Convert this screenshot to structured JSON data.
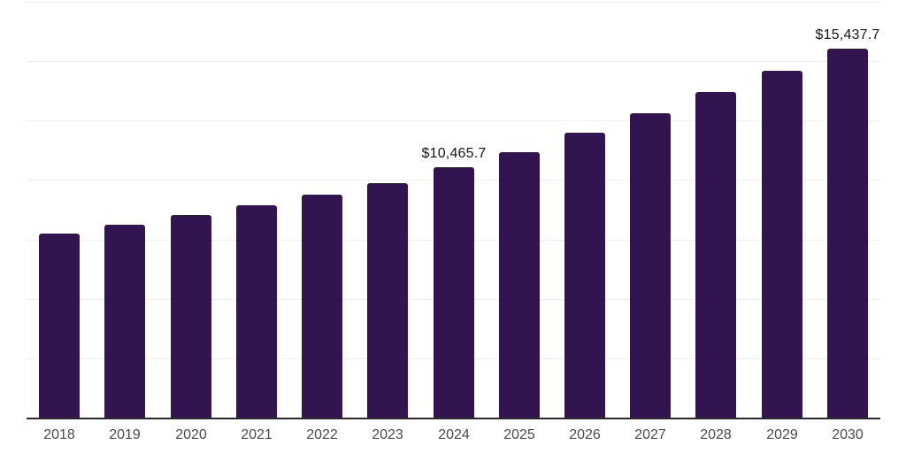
{
  "chart_data": {
    "type": "bar",
    "title": "",
    "xlabel": "",
    "ylabel": "",
    "categories": [
      "2018",
      "2019",
      "2020",
      "2021",
      "2022",
      "2023",
      "2024",
      "2025",
      "2026",
      "2027",
      "2028",
      "2029",
      "2030"
    ],
    "values": [
      7700,
      8070,
      8480,
      8890,
      9330,
      9820,
      10465.7,
      11120,
      11930,
      12740,
      13630,
      14520,
      15437.7
    ],
    "value_labels": [
      "",
      "",
      "",
      "",
      "",
      "",
      "$10,465.7",
      "",
      "",
      "",
      "",
      "",
      "$15,437.7"
    ],
    "ylim": [
      0,
      17400
    ],
    "grid": true,
    "gridline_count": 7,
    "legend": false,
    "bar_color": "#321550",
    "gridline_color": "#f1eff2",
    "axis_line_color": "#2b2b2b",
    "tick_label_color": "#4a4a4a",
    "value_label_color": "#141414"
  }
}
